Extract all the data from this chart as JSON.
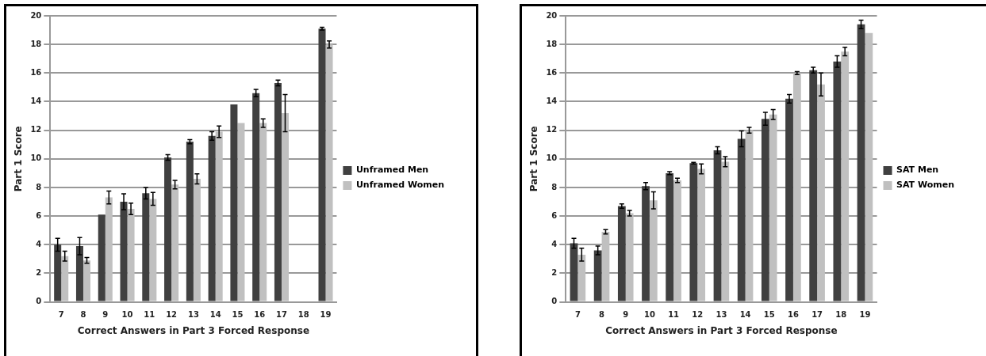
{
  "chart_data": [
    {
      "type": "bar",
      "categories": [
        "7",
        "8",
        "9",
        "10",
        "11",
        "12",
        "13",
        "14",
        "15",
        "16",
        "17",
        "18",
        "19"
      ],
      "xlabel": "Correct Answers in Part 3 Forced Response",
      "ylabel": "Part 1 Score",
      "ylim": [
        0,
        20
      ],
      "yticks": [
        0,
        2,
        4,
        6,
        8,
        10,
        12,
        14,
        16,
        18,
        20
      ],
      "grid": "y",
      "legend": "right",
      "series": [
        {
          "name": "Unframed Men",
          "color": "#404040",
          "values": [
            4.0,
            3.9,
            6.1,
            7.0,
            7.6,
            10.1,
            11.2,
            11.6,
            13.8,
            14.6,
            15.3,
            null,
            19.1
          ],
          "errors": [
            0.45,
            0.6,
            null,
            0.55,
            0.4,
            0.2,
            0.15,
            0.3,
            null,
            0.25,
            0.2,
            null,
            0.1
          ]
        },
        {
          "name": "Unframed Women",
          "color": "#c0c0c0",
          "values": [
            3.2,
            2.9,
            7.3,
            6.5,
            7.2,
            8.2,
            8.6,
            11.9,
            12.5,
            12.5,
            13.2,
            null,
            18.0
          ],
          "errors": [
            0.35,
            0.2,
            0.45,
            0.4,
            0.45,
            0.3,
            0.35,
            0.4,
            null,
            0.3,
            1.3,
            null,
            0.25
          ]
        }
      ]
    },
    {
      "type": "bar",
      "categories": [
        "7",
        "8",
        "9",
        "10",
        "11",
        "12",
        "13",
        "14",
        "15",
        "16",
        "17",
        "18",
        "19"
      ],
      "xlabel": "Correct Answers in Part 3 Forced Response",
      "ylabel": "Part 1 Score",
      "ylim": [
        0,
        20
      ],
      "yticks": [
        0,
        2,
        4,
        6,
        8,
        10,
        12,
        14,
        16,
        18,
        20
      ],
      "grid": "y",
      "legend": "right",
      "series": [
        {
          "name": "SAT Men",
          "color": "#404040",
          "values": [
            4.1,
            3.6,
            6.7,
            8.1,
            9.0,
            9.7,
            10.6,
            11.4,
            12.8,
            14.2,
            16.2,
            16.8,
            19.4
          ],
          "errors": [
            0.35,
            0.3,
            0.15,
            0.25,
            0.1,
            0.05,
            0.25,
            0.55,
            0.45,
            0.3,
            0.2,
            0.4,
            0.3
          ]
        },
        {
          "name": "SAT Women",
          "color": "#c0c0c0",
          "values": [
            3.3,
            4.9,
            6.2,
            7.1,
            8.5,
            9.3,
            9.8,
            12.0,
            13.1,
            16.0,
            15.2,
            17.5,
            18.8
          ],
          "errors": [
            0.45,
            0.15,
            0.2,
            0.6,
            0.15,
            0.35,
            0.35,
            0.2,
            0.35,
            0.1,
            0.8,
            0.3,
            null
          ]
        }
      ]
    }
  ]
}
